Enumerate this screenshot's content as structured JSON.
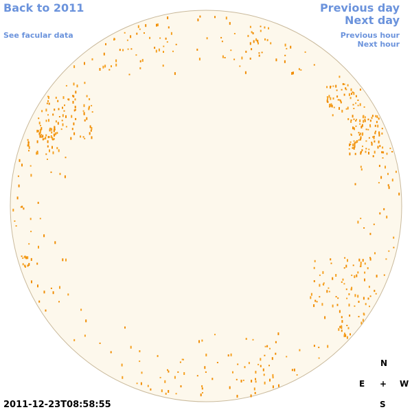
{
  "nav": {
    "back": "Back to 2011",
    "facular": "See facular data",
    "previous_day": "Previous day",
    "next_day": "Next day",
    "previous_hour": "Previous hour",
    "next_hour": "Next hour"
  },
  "timestamp": "2011-12-23T08:58:55",
  "compass": {
    "north": "N",
    "east": "E",
    "center": "+",
    "west": "W",
    "south": "S"
  }
}
